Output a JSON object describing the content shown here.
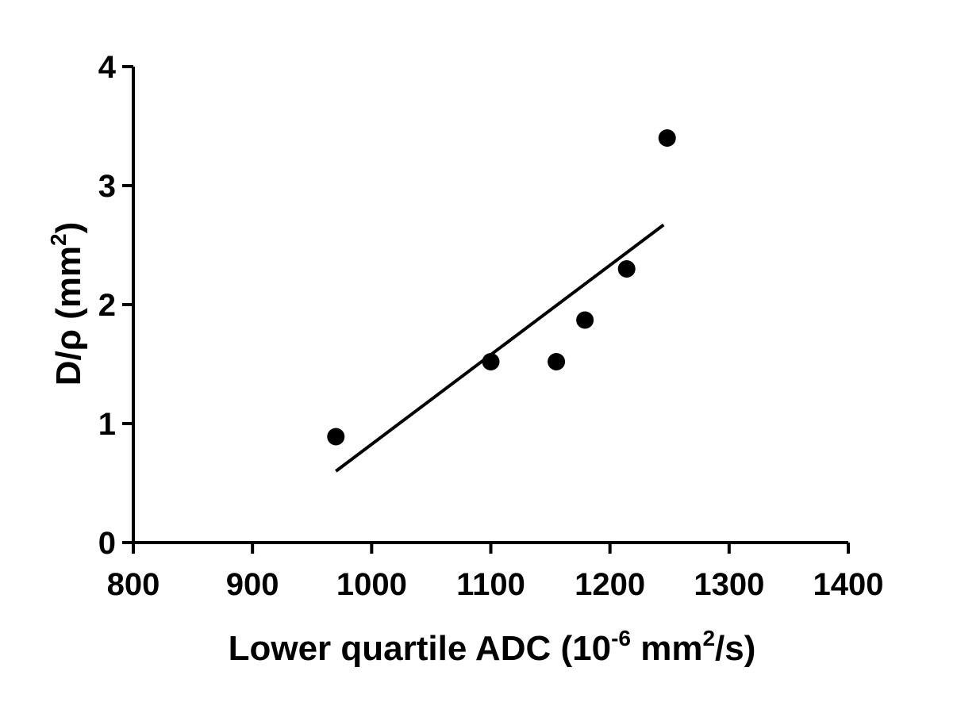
{
  "chart_data": {
    "type": "scatter",
    "title": "",
    "xlabel": {
      "main": "Lower quartile ADC (10",
      "exp1": "-6",
      "mid": " mm",
      "exp2": "2",
      "end": "/s)"
    },
    "ylabel": {
      "main": "D/ρ  (mm",
      "exp": "2",
      "end": ")"
    },
    "xlim": [
      800,
      1400
    ],
    "ylim": [
      0,
      4
    ],
    "x_ticks": [
      800,
      900,
      1000,
      1100,
      1200,
      1300,
      1400
    ],
    "y_ticks": [
      0,
      1,
      2,
      3,
      4
    ],
    "grid": false,
    "series": [
      {
        "points": [
          {
            "x": 970,
            "y": 0.89
          },
          {
            "x": 1100,
            "y": 1.52
          },
          {
            "x": 1155,
            "y": 1.52
          },
          {
            "x": 1179,
            "y": 1.87
          },
          {
            "x": 1214,
            "y": 2.3
          },
          {
            "x": 1248,
            "y": 3.4
          }
        ],
        "color": "#000000"
      }
    ],
    "fit_line": {
      "x_start": 970,
      "y_start": 0.6,
      "x_end": 1245,
      "y_end": 2.67,
      "color": "#000000"
    }
  }
}
